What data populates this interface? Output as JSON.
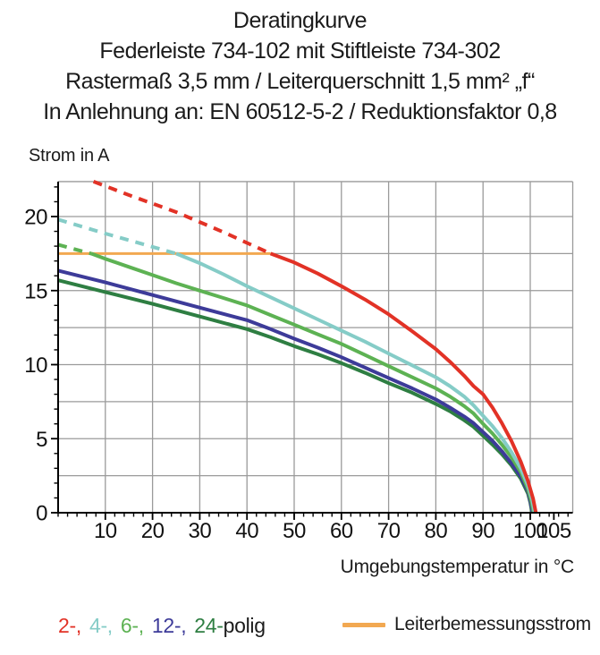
{
  "header": {
    "lines": [
      "Deratingkurve",
      "Federleiste 734-102 mit Stiftleiste 734-302",
      "Rastermaß 3,5 mm / Leiterquerschnitt 1,5 mm² „f“",
      "In Anlehnung an: EN 60512-5-2 / Reduktionsfaktor 0,8"
    ]
  },
  "chart_data": {
    "type": "line",
    "title": "Deratingkurve",
    "xlabel": "Umgebungstemperatur in °C",
    "ylabel": "Strom in A",
    "xlim": [
      0,
      109
    ],
    "ylim": [
      0,
      22.36
    ],
    "x_major_ticks": [
      10,
      20,
      30,
      40,
      50,
      60,
      70,
      80,
      90,
      100,
      105
    ],
    "y_major_ticks": [
      0,
      5,
      10,
      15,
      20
    ],
    "x_minor_step": 2,
    "y_minor_step": 1,
    "x_gridlines": [
      10,
      20,
      30,
      40,
      50,
      60,
      70,
      80,
      90,
      100
    ],
    "y_gridlines": [
      2.5,
      5,
      7.5,
      10,
      12.5,
      15,
      17.5,
      20
    ],
    "grid_on": true,
    "grid_color": "#9a9a9a",
    "axis_color": "#000000",
    "tick_label_color": "#111111",
    "rated_line": {
      "label": "Leiterbemessungsstrom",
      "color": "#f2a851",
      "y": 17.5,
      "x_range": [
        0,
        45
      ]
    },
    "series": [
      {
        "name": "24-polig",
        "color": "#2e7e42",
        "dashed": [],
        "solid": [
          [
            0,
            15.7
          ],
          [
            10,
            14.9
          ],
          [
            20,
            14.1
          ],
          [
            30,
            13.25
          ],
          [
            40,
            12.4
          ],
          [
            45,
            11.85
          ],
          [
            50,
            11.25
          ],
          [
            55,
            10.7
          ],
          [
            60,
            10.1
          ],
          [
            65,
            9.45
          ],
          [
            70,
            8.75
          ],
          [
            75,
            8.1
          ],
          [
            80,
            7.35
          ],
          [
            83,
            6.85
          ],
          [
            86,
            6.25
          ],
          [
            88,
            5.8
          ],
          [
            90,
            5.2
          ],
          [
            92,
            4.6
          ],
          [
            94,
            3.95
          ],
          [
            96,
            3.2
          ],
          [
            98,
            2.3
          ],
          [
            99.5,
            1.3
          ],
          [
            100,
            0.7
          ],
          [
            100.4,
            0
          ]
        ]
      },
      {
        "name": "12-polig",
        "color": "#3d3b99",
        "dashed": [],
        "solid": [
          [
            0,
            16.35
          ],
          [
            10,
            15.55
          ],
          [
            20,
            14.7
          ],
          [
            30,
            13.85
          ],
          [
            40,
            13.0
          ],
          [
            45,
            12.4
          ],
          [
            50,
            11.75
          ],
          [
            55,
            11.15
          ],
          [
            60,
            10.5
          ],
          [
            65,
            9.8
          ],
          [
            70,
            9.1
          ],
          [
            75,
            8.4
          ],
          [
            80,
            7.65
          ],
          [
            83,
            7.1
          ],
          [
            86,
            6.5
          ],
          [
            88,
            6.05
          ],
          [
            90,
            5.45
          ],
          [
            92,
            4.85
          ],
          [
            94,
            4.15
          ],
          [
            96,
            3.35
          ],
          [
            98,
            2.45
          ],
          [
            99.5,
            1.45
          ],
          [
            100.1,
            0.7
          ],
          [
            100.5,
            0
          ]
        ]
      },
      {
        "name": "6-polig",
        "color": "#5db253",
        "dashed": [
          [
            0,
            18.1
          ],
          [
            4,
            17.75
          ],
          [
            7,
            17.5
          ]
        ],
        "solid": [
          [
            7,
            17.5
          ],
          [
            10,
            17.15
          ],
          [
            15,
            16.6
          ],
          [
            20,
            16.05
          ],
          [
            25,
            15.5
          ],
          [
            30,
            15.0
          ],
          [
            35,
            14.5
          ],
          [
            40,
            14.0
          ],
          [
            45,
            13.35
          ],
          [
            50,
            12.7
          ],
          [
            55,
            12.05
          ],
          [
            60,
            11.4
          ],
          [
            65,
            10.65
          ],
          [
            70,
            9.9
          ],
          [
            75,
            9.15
          ],
          [
            80,
            8.4
          ],
          [
            83,
            7.85
          ],
          [
            86,
            7.2
          ],
          [
            88,
            6.7
          ],
          [
            90,
            6.0
          ],
          [
            92,
            5.35
          ],
          [
            94,
            4.6
          ],
          [
            96,
            3.75
          ],
          [
            98,
            2.75
          ],
          [
            99.5,
            1.6
          ],
          [
            100.2,
            0.8
          ],
          [
            100.7,
            0
          ]
        ]
      },
      {
        "name": "4-polig",
        "color": "#85ccc7",
        "dashed": [
          [
            0,
            19.8
          ],
          [
            10,
            18.85
          ],
          [
            20,
            17.95
          ],
          [
            25,
            17.5
          ]
        ],
        "solid": [
          [
            25,
            17.5
          ],
          [
            30,
            16.85
          ],
          [
            35,
            16.1
          ],
          [
            40,
            15.3
          ],
          [
            45,
            14.55
          ],
          [
            50,
            13.8
          ],
          [
            55,
            13.05
          ],
          [
            60,
            12.3
          ],
          [
            65,
            11.55
          ],
          [
            70,
            10.75
          ],
          [
            75,
            9.95
          ],
          [
            80,
            9.15
          ],
          [
            83,
            8.55
          ],
          [
            86,
            7.85
          ],
          [
            88,
            7.25
          ],
          [
            90,
            6.55
          ],
          [
            92,
            5.85
          ],
          [
            94,
            5.05
          ],
          [
            96,
            4.1
          ],
          [
            98,
            3.0
          ],
          [
            99.5,
            1.85
          ],
          [
            100.4,
            0.9
          ],
          [
            100.9,
            0
          ]
        ]
      },
      {
        "name": "2-polig",
        "color": "#e23226",
        "dashed": [
          [
            7.5,
            22.36
          ],
          [
            15,
            21.45
          ],
          [
            25,
            20.3
          ],
          [
            35,
            18.95
          ],
          [
            45,
            17.5
          ]
        ],
        "solid": [
          [
            45,
            17.5
          ],
          [
            50,
            16.9
          ],
          [
            55,
            16.15
          ],
          [
            60,
            15.3
          ],
          [
            65,
            14.4
          ],
          [
            70,
            13.4
          ],
          [
            75,
            12.25
          ],
          [
            80,
            11.05
          ],
          [
            83,
            10.2
          ],
          [
            86,
            9.25
          ],
          [
            88,
            8.55
          ],
          [
            90,
            8.0
          ],
          [
            92,
            7.1
          ],
          [
            94,
            6.05
          ],
          [
            96,
            4.85
          ],
          [
            98,
            3.45
          ],
          [
            99.5,
            2.15
          ],
          [
            100.6,
            0.95
          ],
          [
            101.2,
            0
          ]
        ]
      }
    ],
    "legend_position": "bottom"
  },
  "legend": {
    "pole_items": [
      {
        "text": "2-,",
        "color": "#e23226"
      },
      {
        "text": "4-,",
        "color": "#85ccc7"
      },
      {
        "text": "6-,",
        "color": "#5db253"
      },
      {
        "text": "12-,",
        "color": "#3d3b99"
      },
      {
        "text": "24-",
        "color": "#2e7e42"
      }
    ],
    "suffix": "polig",
    "rated": {
      "label": "Leiterbemessungsstrom",
      "color": "#f2a851"
    }
  }
}
